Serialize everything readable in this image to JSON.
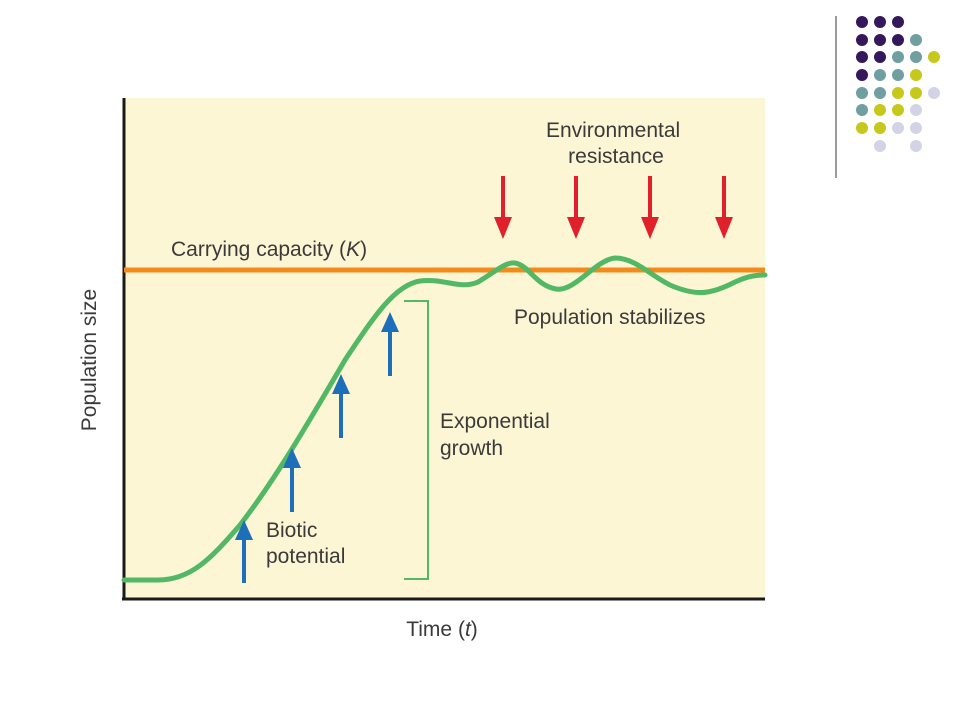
{
  "slide": {
    "decor_colors": {
      "purple": "#35185c",
      "teal": "#6f9fa0",
      "olive": "#c6c81c",
      "lavender": "#d3d3e6",
      "divider": "#7a7a7a"
    }
  },
  "diagram": {
    "colors": {
      "background": "#fdf6d4",
      "axes": "#1a1a1a",
      "carrying_capacity_line": "#f28b1c",
      "population_curve": "#52b866",
      "biotic_arrows": "#1c6fb8",
      "resistance_arrows": "#e0202b",
      "bracket": "#52b866",
      "text": "#3a3a3a"
    },
    "y_axis_label": "Population size",
    "x_axis_label_main": "Time (",
    "x_axis_label_var": "t",
    "x_axis_label_end": ")",
    "carrying_capacity_label_main": "Carrying capacity (",
    "carrying_capacity_label_var": "K",
    "carrying_capacity_label_end": ")",
    "environmental_resistance_line1": "Environmental",
    "environmental_resistance_line2": "resistance",
    "population_stabilizes_label": "Population stabilizes",
    "exponential_growth_line1": "Exponential",
    "exponential_growth_line2": "growth",
    "biotic_potential_line1": "Biotic",
    "biotic_potential_line2": "potential"
  }
}
